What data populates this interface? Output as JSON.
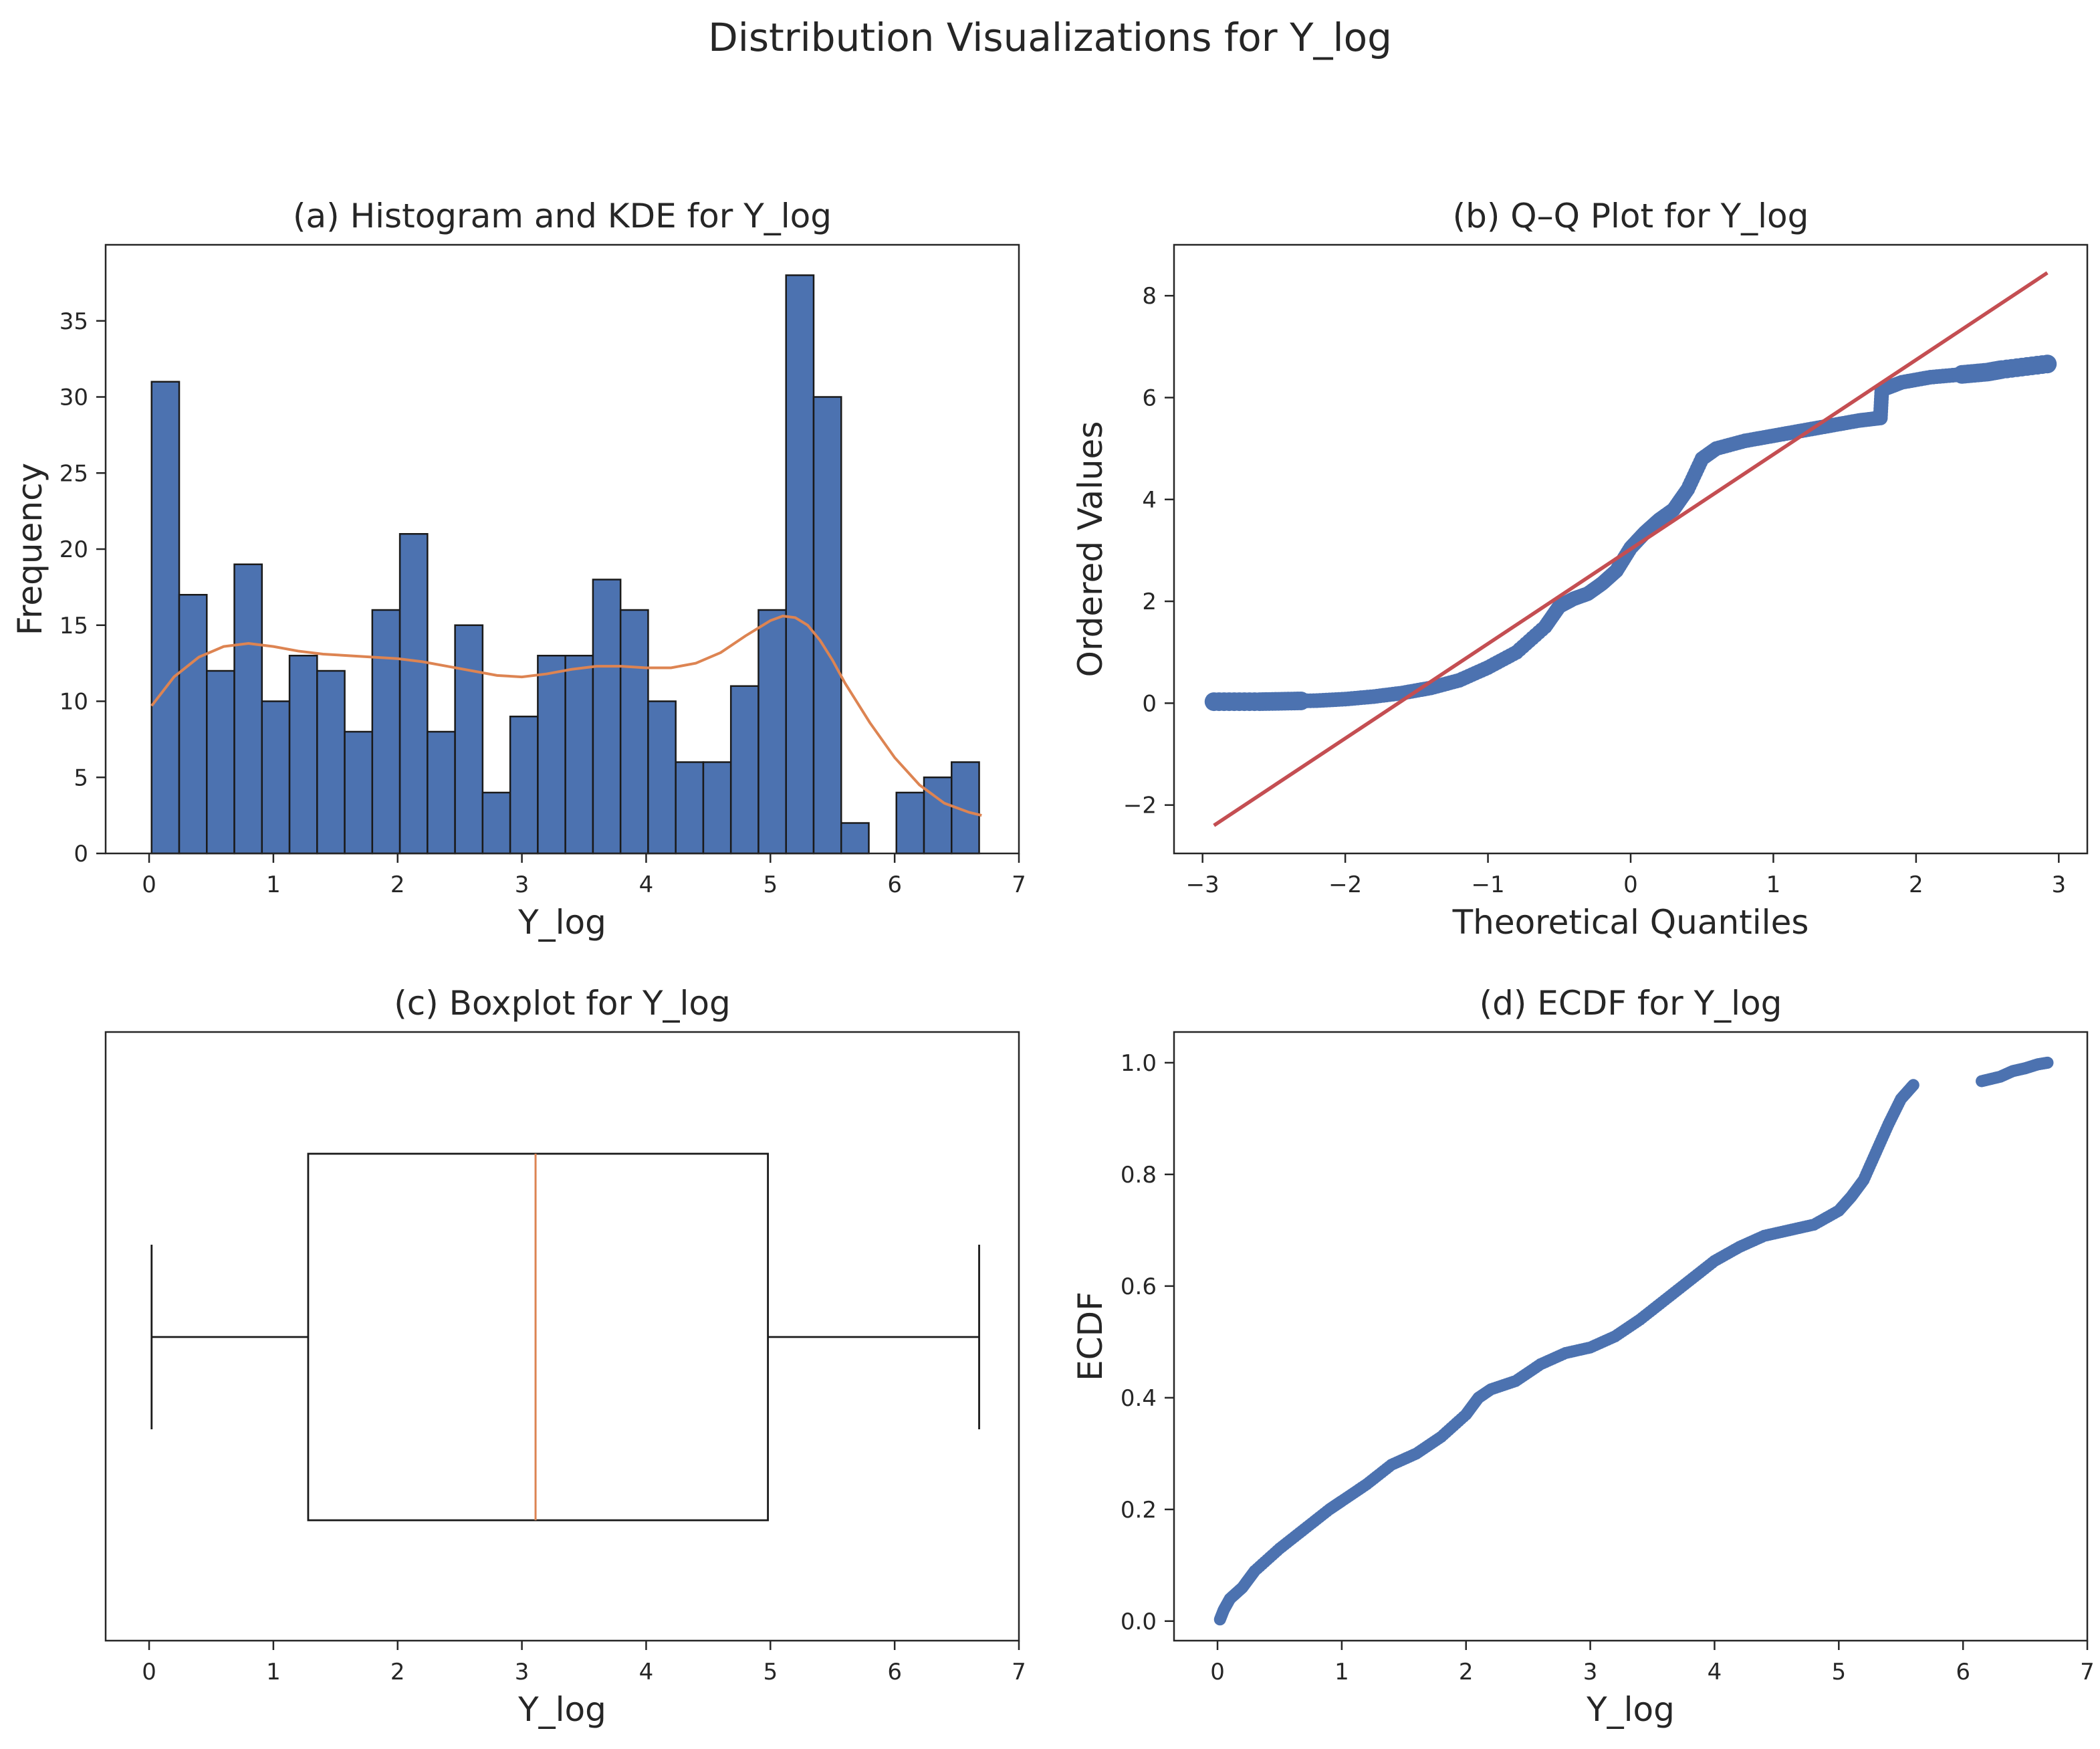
{
  "figure_title": "Distribution Visualizations for Y_log",
  "colors": {
    "bar": "#4c72b0",
    "kde": "#dd8452",
    "fit_line": "#c44e52",
    "point": "#4c72b0",
    "median": "#dd8452",
    "axis": "#262626"
  },
  "chart_data": [
    {
      "id": "a",
      "type": "bar",
      "title": "(a) Histogram and KDE for Y_log",
      "xlabel": "Y_log",
      "ylabel": "Frequency",
      "xlim": [
        -0.35,
        7.0
      ],
      "ylim": [
        0,
        40
      ],
      "xticks": [
        0,
        1,
        2,
        3,
        4,
        5,
        6,
        7
      ],
      "xtick_labels": [
        "0",
        "1",
        "2",
        "3",
        "4",
        "5",
        "6",
        "7"
      ],
      "yticks": [
        0,
        5,
        10,
        15,
        20,
        25,
        30,
        35
      ],
      "ytick_labels": [
        "0",
        "5",
        "10",
        "15",
        "20",
        "25",
        "30",
        "35"
      ],
      "bin_start": 0.02,
      "bin_width": 0.222,
      "values": [
        31,
        17,
        12,
        19,
        10,
        13,
        12,
        8,
        16,
        21,
        8,
        15,
        4,
        9,
        13,
        13,
        18,
        16,
        10,
        6,
        6,
        11,
        16,
        38,
        30,
        2,
        0,
        4,
        5,
        6
      ],
      "kde": {
        "x": [
          0.02,
          0.2,
          0.4,
          0.6,
          0.8,
          1.0,
          1.2,
          1.4,
          1.6,
          1.8,
          2.0,
          2.2,
          2.4,
          2.6,
          2.8,
          3.0,
          3.2,
          3.4,
          3.6,
          3.8,
          4.0,
          4.2,
          4.4,
          4.6,
          4.8,
          5.0,
          5.1,
          5.2,
          5.3,
          5.4,
          5.5,
          5.6,
          5.8,
          6.0,
          6.2,
          6.4,
          6.6,
          6.7
        ],
        "y": [
          9.7,
          11.6,
          12.9,
          13.6,
          13.8,
          13.6,
          13.3,
          13.1,
          13.0,
          12.9,
          12.8,
          12.6,
          12.3,
          12.0,
          11.7,
          11.6,
          11.8,
          12.1,
          12.3,
          12.3,
          12.2,
          12.2,
          12.5,
          13.2,
          14.3,
          15.3,
          15.6,
          15.5,
          15.0,
          14.0,
          12.7,
          11.2,
          8.6,
          6.3,
          4.5,
          3.3,
          2.7,
          2.5
        ]
      }
    },
    {
      "id": "b",
      "type": "scatter",
      "title": "(b) Q–Q Plot for Y_log",
      "xlabel": "Theoretical Quantiles",
      "ylabel": "Ordered Values",
      "xlim": [
        -3.2,
        3.2
      ],
      "ylim": [
        -2.95,
        9.0
      ],
      "xticks": [
        -3,
        -2,
        -1,
        0,
        1,
        2,
        3
      ],
      "xtick_labels": [
        "−3",
        "−2",
        "−1",
        "0",
        "1",
        "2",
        "3"
      ],
      "yticks": [
        -2,
        0,
        2,
        4,
        6,
        8
      ],
      "ytick_labels": [
        "−2",
        "0",
        "2",
        "4",
        "6",
        "8"
      ],
      "curve": {
        "x": [
          -2.92,
          -2.6,
          -2.4,
          -2.2,
          -2.0,
          -1.8,
          -1.6,
          -1.4,
          -1.2,
          -1.0,
          -0.8,
          -0.6,
          -0.5,
          -0.4,
          -0.3,
          -0.2,
          -0.1,
          0.0,
          0.1,
          0.2,
          0.3,
          0.4,
          0.5,
          0.6,
          0.8,
          1.0,
          1.2,
          1.4,
          1.6,
          1.75,
          1.76,
          1.9,
          2.1,
          2.3,
          2.5,
          2.6,
          2.92
        ],
        "y": [
          0.03,
          0.03,
          0.04,
          0.05,
          0.08,
          0.13,
          0.2,
          0.3,
          0.45,
          0.7,
          1.0,
          1.5,
          1.9,
          2.05,
          2.15,
          2.35,
          2.6,
          3.05,
          3.35,
          3.6,
          3.8,
          4.2,
          4.8,
          5.0,
          5.15,
          5.25,
          5.35,
          5.45,
          5.55,
          5.6,
          6.15,
          6.3,
          6.4,
          6.45,
          6.5,
          6.55,
          6.66
        ]
      },
      "fit_line": {
        "x": [
          -2.92,
          2.92
        ],
        "y": [
          -2.4,
          8.45
        ]
      }
    },
    {
      "id": "c",
      "type": "box",
      "title": "(c) Boxplot for Y_log",
      "xlabel": "Y_log",
      "xlim": [
        -0.35,
        7.0
      ],
      "xticks": [
        0,
        1,
        2,
        3,
        4,
        5,
        6,
        7
      ],
      "xtick_labels": [
        "0",
        "1",
        "2",
        "3",
        "4",
        "5",
        "6",
        "7"
      ],
      "whisker_low": 0.02,
      "q1": 1.28,
      "median": 3.11,
      "q3": 4.98,
      "whisker_high": 6.68
    },
    {
      "id": "d",
      "type": "scatter",
      "title": "(d) ECDF for Y_log",
      "xlabel": "Y_log",
      "ylabel": "ECDF",
      "xlim": [
        -0.35,
        7.0
      ],
      "ylim": [
        -0.035,
        1.055
      ],
      "xticks": [
        0,
        1,
        2,
        3,
        4,
        5,
        6,
        7
      ],
      "xtick_labels": [
        "0",
        "1",
        "2",
        "3",
        "4",
        "5",
        "6",
        "7"
      ],
      "yticks": [
        0,
        0.2,
        0.4,
        0.6,
        0.8,
        1.0
      ],
      "ytick_labels": [
        "0.0",
        "0.2",
        "0.4",
        "0.6",
        "0.8",
        "1.0"
      ],
      "curve": {
        "x": [
          0.02,
          0.05,
          0.1,
          0.2,
          0.3,
          0.5,
          0.7,
          0.9,
          1.0,
          1.2,
          1.4,
          1.6,
          1.8,
          2.0,
          2.1,
          2.2,
          2.4,
          2.6,
          2.8,
          3.0,
          3.2,
          3.4,
          3.6,
          3.8,
          4.0,
          4.2,
          4.4,
          4.6,
          4.8,
          5.0,
          5.1,
          5.2,
          5.3,
          5.4,
          5.5,
          5.6,
          6.15,
          6.3,
          6.4,
          6.5,
          6.6,
          6.68
        ],
        "y": [
          0.003,
          0.02,
          0.04,
          0.06,
          0.09,
          0.13,
          0.165,
          0.2,
          0.215,
          0.245,
          0.28,
          0.3,
          0.33,
          0.37,
          0.4,
          0.415,
          0.43,
          0.46,
          0.48,
          0.49,
          0.51,
          0.54,
          0.575,
          0.61,
          0.645,
          0.67,
          0.69,
          0.7,
          0.71,
          0.735,
          0.76,
          0.79,
          0.84,
          0.89,
          0.935,
          0.96,
          0.967,
          0.975,
          0.985,
          0.99,
          0.997,
          1.0
        ]
      }
    }
  ]
}
